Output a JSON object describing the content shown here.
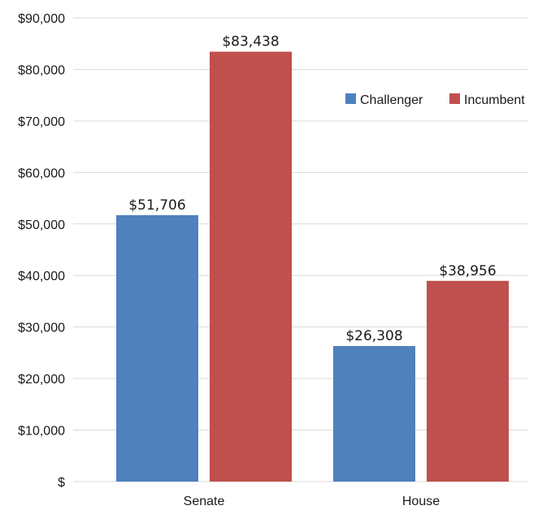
{
  "chart_data": {
    "type": "bar",
    "categories": [
      "Senate",
      "House"
    ],
    "series": [
      {
        "name": "Challenger",
        "color": "#4f81bd",
        "values": [
          51706,
          26308
        ],
        "labels": [
          "$51,706",
          "$26,308"
        ]
      },
      {
        "name": "Incumbent",
        "color": "#c0504d",
        "values": [
          83438,
          38956
        ],
        "labels": [
          "$83,438",
          "$38,956"
        ]
      }
    ],
    "ylim": [
      0,
      90000
    ],
    "yticks": [
      0,
      10000,
      20000,
      30000,
      40000,
      50000,
      60000,
      70000,
      80000,
      90000
    ],
    "ytick_labels": [
      "$",
      "$10,000",
      "$20,000",
      "$30,000",
      "$40,000",
      "$50,000",
      "$60,000",
      "$70,000",
      "$80,000",
      "$90,000"
    ],
    "grid": true,
    "legend_position": "top-right",
    "title": "",
    "xlabel": "",
    "ylabel": ""
  }
}
